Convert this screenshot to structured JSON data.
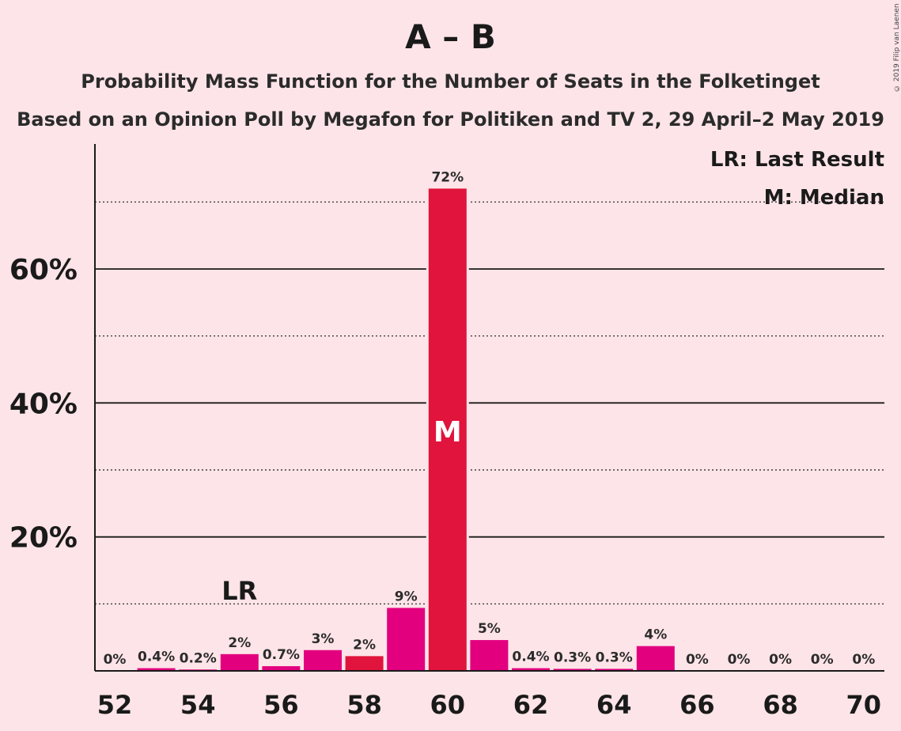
{
  "header": {
    "title": "A – B",
    "subtitle1": "Probability Mass Function for the Number of Seats in the Folketinget",
    "subtitle2": "Based on an Opinion Poll by Megafon for Politiken and TV 2, 29 April–2 May 2019",
    "copyright": "© 2019 Filip van Laenen"
  },
  "legend": {
    "last_result": "LR: Last Result",
    "median": "M: Median"
  },
  "chart_data": {
    "type": "bar",
    "title": "A – B",
    "x": [
      52,
      53,
      54,
      55,
      56,
      57,
      58,
      59,
      60,
      61,
      62,
      63,
      64,
      65,
      66,
      67,
      68,
      69,
      70
    ],
    "values": [
      0,
      0.4,
      0.2,
      2.5,
      0.7,
      3.1,
      2.2,
      9.4,
      72,
      4.6,
      0.4,
      0.3,
      0.3,
      3.7,
      0,
      0,
      0,
      0,
      0
    ],
    "value_labels": [
      "0%",
      "0.4%",
      "0.2%",
      "2%",
      "0.7%",
      "3%",
      "2%",
      "9%",
      "72%",
      "5%",
      "0.4%",
      "0.3%",
      "0.3%",
      "4%",
      "0%",
      "0%",
      "0%",
      "0%",
      "0%"
    ],
    "x_tick_labels": [
      "52",
      "54",
      "56",
      "58",
      "60",
      "62",
      "64",
      "66",
      "68",
      "70"
    ],
    "x_ticks": [
      52,
      54,
      56,
      58,
      60,
      62,
      64,
      66,
      68,
      70
    ],
    "y_tick_labels": [
      "20%",
      "40%",
      "60%"
    ],
    "y_ticks": [
      20,
      40,
      60
    ],
    "ylim": [
      0,
      78
    ],
    "major_grid": [
      20,
      40,
      60
    ],
    "minor_grid": [
      10,
      30,
      50,
      70
    ],
    "last_result_seat": 55,
    "last_result_marker": "LR",
    "median_seat": 60,
    "median_marker": "M",
    "colors": {
      "bar": "#e3007f",
      "median_bar": "#e0143c",
      "alt_bar": "#e0143c",
      "background": "#fde4e8",
      "axis": "#1a1a1a"
    },
    "alt_color_seats": [
      58
    ]
  }
}
